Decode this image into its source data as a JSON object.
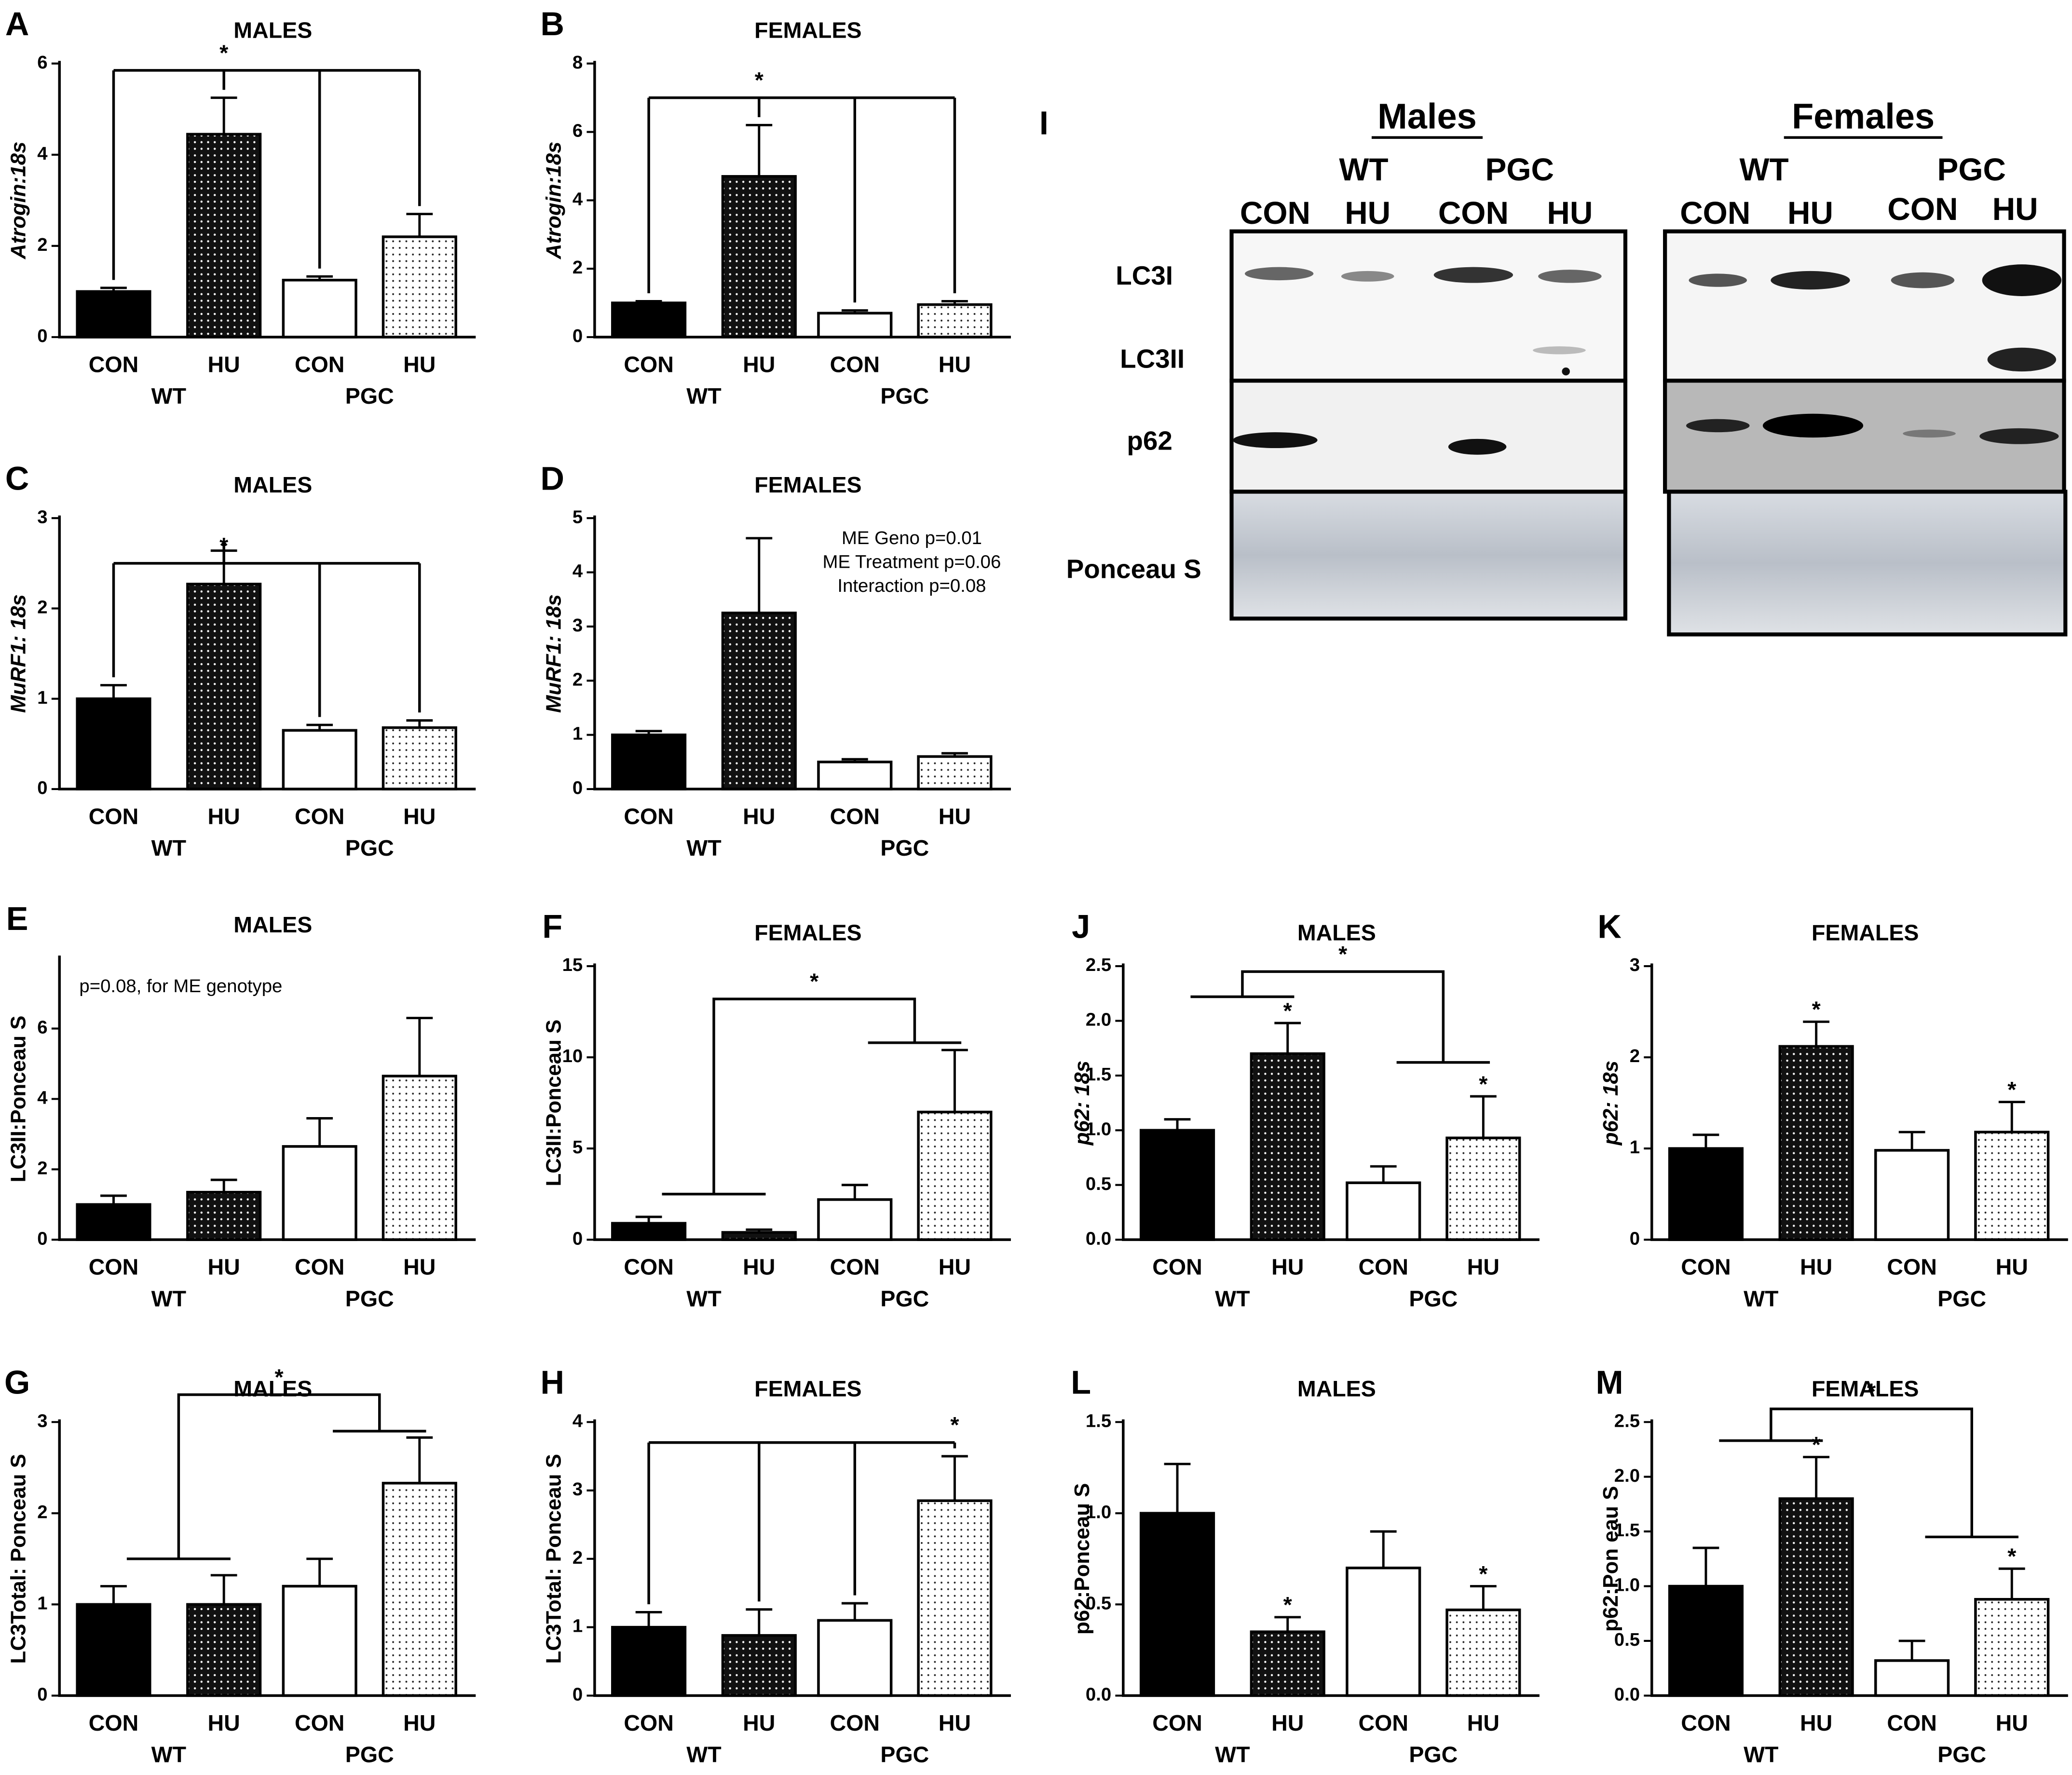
{
  "chart_data": [
    {
      "type": "bar",
      "panel": "A",
      "title": "MALES",
      "ylabel": "Atrogin:18s",
      "ylabel_italic": true,
      "categories": [
        "CON",
        "HU",
        "CON",
        "HU"
      ],
      "groups": [
        "WT",
        "PGC"
      ],
      "values": [
        1.0,
        4.45,
        1.25,
        2.2
      ],
      "errors": [
        0.08,
        0.8,
        0.08,
        0.5
      ],
      "fills": [
        "black",
        "dark-dots",
        "white",
        "light-dots"
      ],
      "ylim": [
        0,
        6
      ],
      "yticks": [
        0,
        2,
        4,
        6
      ],
      "bracket_label": "*"
    },
    {
      "type": "bar",
      "panel": "B",
      "title": "FEMALES",
      "ylabel": "Atrogin:18s",
      "ylabel_italic": true,
      "categories": [
        "CON",
        "HU",
        "CON",
        "HU"
      ],
      "groups": [
        "WT",
        "PGC"
      ],
      "values": [
        1.0,
        4.7,
        0.7,
        0.95
      ],
      "errors": [
        0.05,
        1.5,
        0.08,
        0.1
      ],
      "fills": [
        "black",
        "dark-dots",
        "white",
        "light-dots"
      ],
      "ylim": [
        0,
        8
      ],
      "yticks": [
        0,
        2,
        4,
        6,
        8
      ],
      "bracket_label": "*"
    },
    {
      "type": "bar",
      "panel": "C",
      "title": "MALES",
      "ylabel": "MuRF1: 18s",
      "ylabel_italic": true,
      "categories": [
        "CON",
        "HU",
        "CON",
        "HU"
      ],
      "groups": [
        "WT",
        "PGC"
      ],
      "values": [
        1.0,
        2.27,
        0.65,
        0.68
      ],
      "errors": [
        0.15,
        0.37,
        0.06,
        0.08
      ],
      "fills": [
        "black",
        "dark-dots",
        "white",
        "light-dots"
      ],
      "ylim": [
        0,
        3
      ],
      "yticks": [
        0,
        1,
        2,
        3
      ],
      "bracket_label": "*"
    },
    {
      "type": "bar",
      "panel": "D",
      "title": "FEMALES",
      "ylabel": "MuRF1: 18s",
      "ylabel_italic": true,
      "categories": [
        "CON",
        "HU",
        "CON",
        "HU"
      ],
      "groups": [
        "WT",
        "PGC"
      ],
      "values": [
        1.0,
        3.25,
        0.5,
        0.6
      ],
      "errors": [
        0.07,
        1.38,
        0.05,
        0.06
      ],
      "fills": [
        "black",
        "dark-dots",
        "white",
        "light-dots"
      ],
      "ylim": [
        0,
        5
      ],
      "yticks": [
        0,
        1,
        2,
        3,
        4,
        5
      ],
      "annotation": [
        "ME Geno p=0.01",
        "ME Treatment p=0.06",
        "Interaction p=0.08"
      ]
    },
    {
      "type": "bar",
      "panel": "E",
      "title": "MALES",
      "ylabel": "LC3II:Ponceau S",
      "ylabel_italic": false,
      "categories": [
        "CON",
        "HU",
        "CON",
        "HU"
      ],
      "groups": [
        "WT",
        "PGC"
      ],
      "values": [
        1.0,
        1.35,
        2.65,
        4.65
      ],
      "errors": [
        0.25,
        0.35,
        0.8,
        1.65
      ],
      "fills": [
        "black",
        "dark-dots",
        "white",
        "light-dots"
      ],
      "ylim": [
        0,
        8
      ],
      "yticks": [
        0,
        2,
        4,
        6
      ],
      "annotation": [
        "p=0.08, for ME genotype"
      ]
    },
    {
      "type": "bar",
      "panel": "F",
      "title": "FEMALES",
      "ylabel": "LC3II:Ponceau S",
      "ylabel_italic": false,
      "categories": [
        "CON",
        "HU",
        "CON",
        "HU"
      ],
      "groups": [
        "WT",
        "PGC"
      ],
      "values": [
        0.9,
        0.4,
        2.2,
        7.0
      ],
      "errors": [
        0.35,
        0.15,
        0.8,
        3.4
      ],
      "fills": [
        "black",
        "dark-dots",
        "white",
        "light-dots"
      ],
      "ylim": [
        0,
        15
      ],
      "yticks": [
        0,
        5,
        10,
        15
      ],
      "bracket_label": "*"
    },
    {
      "type": "bar",
      "panel": "J",
      "title": "MALES",
      "ylabel": "p62: 18s",
      "ylabel_italic": true,
      "categories": [
        "CON",
        "HU",
        "CON",
        "HU"
      ],
      "groups": [
        "WT",
        "PGC"
      ],
      "values": [
        1.0,
        1.7,
        0.52,
        0.93
      ],
      "errors": [
        0.1,
        0.28,
        0.15,
        0.38
      ],
      "fills": [
        "black",
        "dark-dots",
        "white",
        "light-dots"
      ],
      "ylim": [
        0,
        2.5
      ],
      "yticks": [
        {
          "value": 0,
          "label": "0.0"
        },
        0.5,
        {
          "value": 1,
          "label": "1.0"
        },
        1.5,
        {
          "value": 2,
          "label": "2.0"
        },
        2.5
      ],
      "bracket_label": "*",
      "bar_labels": [
        null,
        "*",
        null,
        "*"
      ]
    },
    {
      "type": "bar",
      "panel": "K",
      "title": "FEMALES",
      "ylabel": "p62: 18s",
      "ylabel_italic": true,
      "categories": [
        "CON",
        "HU",
        "CON",
        "HU"
      ],
      "groups": [
        "WT",
        "PGC"
      ],
      "values": [
        1.0,
        2.12,
        0.98,
        1.18
      ],
      "errors": [
        0.15,
        0.27,
        0.2,
        0.33
      ],
      "fills": [
        "black",
        "dark-dots",
        "white",
        "light-dots"
      ],
      "ylim": [
        0,
        3
      ],
      "yticks": [
        0,
        1,
        2,
        3
      ],
      "bar_labels": [
        null,
        "*",
        null,
        "*"
      ]
    },
    {
      "type": "bar",
      "panel": "G",
      "title": "MALES",
      "ylabel": "LC3Total: Ponceau S",
      "ylabel_italic": false,
      "categories": [
        "CON",
        "HU",
        "CON",
        "HU"
      ],
      "groups": [
        "WT",
        "PGC"
      ],
      "values": [
        1.0,
        1.0,
        1.2,
        2.33
      ],
      "errors": [
        0.2,
        0.32,
        0.3,
        0.5
      ],
      "fills": [
        "black",
        "dark-dots",
        "white",
        "light-dots"
      ],
      "ylim": [
        0,
        3
      ],
      "yticks": [
        0,
        1,
        2,
        3
      ],
      "bracket_label": "*"
    },
    {
      "type": "bar",
      "panel": "H",
      "title": "FEMALES",
      "ylabel": "LC3Total: Ponceau S",
      "ylabel_italic": false,
      "categories": [
        "CON",
        "HU",
        "CON",
        "HU"
      ],
      "groups": [
        "WT",
        "PGC"
      ],
      "values": [
        1.0,
        0.88,
        1.1,
        2.85
      ],
      "errors": [
        0.22,
        0.38,
        0.25,
        0.65
      ],
      "fills": [
        "black",
        "dark-dots",
        "white",
        "light-dots"
      ],
      "ylim": [
        0,
        4
      ],
      "yticks": [
        0,
        1,
        2,
        3,
        4
      ],
      "bracket_label": "*"
    },
    {
      "type": "bar",
      "panel": "L",
      "title": "MALES",
      "ylabel": "p62:Ponceau S",
      "ylabel_italic": false,
      "categories": [
        "CON",
        "HU",
        "CON",
        "HU"
      ],
      "groups": [
        "WT",
        "PGC"
      ],
      "values": [
        1.0,
        0.35,
        0.7,
        0.47
      ],
      "errors": [
        0.27,
        0.08,
        0.2,
        0.13
      ],
      "fills": [
        "black",
        "dark-dots",
        "white",
        "light-dots"
      ],
      "ylim": [
        0,
        1.5
      ],
      "yticks": [
        {
          "value": 0,
          "label": "0.0"
        },
        0.5,
        {
          "value": 1,
          "label": "1.0"
        },
        1.5
      ],
      "bar_labels": [
        null,
        "*",
        null,
        "*"
      ]
    },
    {
      "type": "bar",
      "panel": "M",
      "title": "FEMALES",
      "ylabel": "p62:Pon eau S",
      "ylabel_italic": false,
      "categories": [
        "CON",
        "HU",
        "CON",
        "HU"
      ],
      "groups": [
        "WT",
        "PGC"
      ],
      "values": [
        1.0,
        1.8,
        0.32,
        0.88
      ],
      "errors": [
        0.35,
        0.38,
        0.18,
        0.28
      ],
      "fills": [
        "black",
        "dark-dots",
        "white",
        "light-dots"
      ],
      "ylim": [
        0,
        2.5
      ],
      "yticks": [
        {
          "value": 0,
          "label": "0.0"
        },
        0.5,
        {
          "value": 1,
          "label": "1.0"
        },
        1.5,
        {
          "value": 2,
          "label": "2.0"
        },
        2.5
      ],
      "bracket_label": "*",
      "bar_labels": [
        null,
        "*",
        null,
        "*"
      ]
    }
  ],
  "blot": {
    "panel": "I",
    "groups": [
      {
        "title": "Males",
        "genotypes": [
          "WT",
          "PGC"
        ],
        "treatments": [
          "CON",
          "HU",
          "CON",
          "HU"
        ]
      },
      {
        "title": "Females",
        "genotypes": [
          "WT",
          "PGC"
        ],
        "treatments": [
          "CON",
          "HU",
          "CON",
          "HU"
        ]
      }
    ],
    "rows": [
      "LC3I",
      "LC3II",
      "p62",
      "Ponceau S"
    ]
  }
}
